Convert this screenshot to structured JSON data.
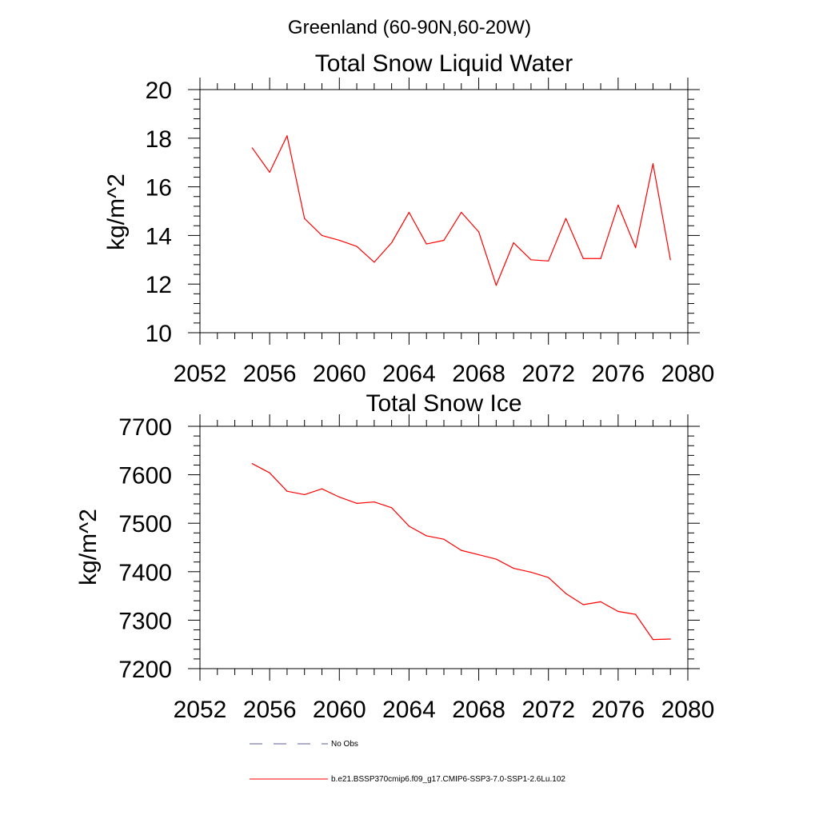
{
  "figure": {
    "suptitle": "Greenland (60-90N,60-20W)"
  },
  "chart_data": [
    {
      "type": "line",
      "title": "Total Snow Liquid Water",
      "xlabel": "",
      "ylabel": "kg/m^2",
      "xlim": [
        2052,
        2080
      ],
      "ylim": [
        10,
        20
      ],
      "xticks": [
        2052,
        2056,
        2060,
        2064,
        2068,
        2072,
        2076,
        2080
      ],
      "yticks": [
        10,
        12,
        14,
        16,
        18,
        20
      ],
      "x": [
        2055,
        2056,
        2057,
        2058,
        2059,
        2060,
        2061,
        2062,
        2063,
        2064,
        2065,
        2066,
        2067,
        2068,
        2069,
        2070,
        2071,
        2072,
        2073,
        2074,
        2075,
        2076,
        2077,
        2078,
        2079
      ],
      "series": [
        {
          "name": "b.e21.BSSP370cmip6.f09_g17.CMIP6-SSP3-7.0-SSP1-2.6Lu.102",
          "color": "#ff0000",
          "values": [
            17.6,
            16.6,
            18.1,
            14.7,
            14.0,
            13.8,
            13.55,
            12.9,
            13.7,
            14.95,
            13.65,
            13.8,
            14.95,
            14.15,
            11.95,
            13.7,
            13.0,
            12.95,
            14.7,
            13.05,
            13.05,
            15.25,
            13.5,
            16.95,
            13.0
          ]
        }
      ],
      "grid": false
    },
    {
      "type": "line",
      "title": "Total Snow Ice",
      "xlabel": "",
      "ylabel": "kg/m^2",
      "xlim": [
        2052,
        2080
      ],
      "ylim": [
        7200,
        7700
      ],
      "xticks": [
        2052,
        2056,
        2060,
        2064,
        2068,
        2072,
        2076,
        2080
      ],
      "yticks": [
        7200,
        7300,
        7400,
        7500,
        7600,
        7700
      ],
      "x": [
        2055,
        2056,
        2057,
        2058,
        2059,
        2060,
        2061,
        2062,
        2063,
        2064,
        2065,
        2066,
        2067,
        2068,
        2069,
        2070,
        2071,
        2072,
        2073,
        2074,
        2075,
        2076,
        2077,
        2078,
        2079
      ],
      "series": [
        {
          "name": "b.e21.BSSP370cmip6.f09_g17.CMIP6-SSP3-7.0-SSP1-2.6Lu.102",
          "color": "#ff0000",
          "values": [
            7623,
            7604,
            7566,
            7559,
            7571,
            7554,
            7541,
            7544,
            7532,
            7494,
            7474,
            7467,
            7444,
            7435,
            7426,
            7407,
            7399,
            7388,
            7355,
            7332,
            7338,
            7318,
            7312,
            7260,
            7261
          ]
        }
      ],
      "grid": false
    }
  ],
  "legend": {
    "placement": "bottom",
    "entries": [
      {
        "label": "No Obs",
        "style": "dashed",
        "color": "#5a5a9a"
      },
      {
        "label": "b.e21.BSSP370cmip6.f09_g17.CMIP6-SSP3-7.0-SSP1-2.6Lu.102",
        "style": "solid",
        "color": "#ff0000"
      }
    ]
  }
}
